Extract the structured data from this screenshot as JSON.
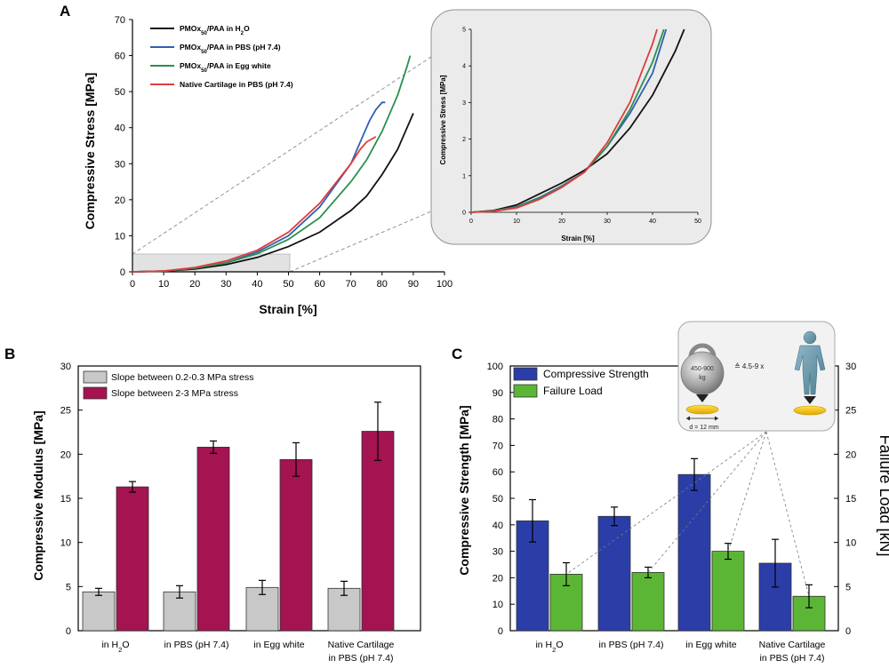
{
  "chart_data": [
    {
      "panel": "A",
      "type": "line",
      "xlabel": "Strain [%]",
      "ylabel": "Compressive Stress [MPa]",
      "xlim": [
        0,
        100
      ],
      "ylim": [
        0,
        70
      ],
      "xticks": [
        0,
        10,
        20,
        30,
        40,
        50,
        60,
        70,
        80,
        90,
        100
      ],
      "yticks": [
        0,
        10,
        20,
        30,
        40,
        50,
        60,
        70
      ],
      "series": [
        {
          "name": "PMOx50/PAA in H2O",
          "label_parts": [
            "PMOx",
            "50",
            "/PAA in H",
            "2",
            "O"
          ],
          "color": "#111111",
          "x": [
            0,
            10,
            20,
            30,
            40,
            50,
            60,
            70,
            75,
            80,
            85,
            88,
            90
          ],
          "y": [
            0,
            0.2,
            0.8,
            2,
            4,
            7,
            11,
            17,
            21,
            27,
            34,
            40,
            44
          ]
        },
        {
          "name": "PMOx50/PAA in PBS (pH 7.4)",
          "label_parts": [
            "PMOx",
            "50",
            "/PAA in PBS (pH 7.4)",
            "",
            ""
          ],
          "color": "#2f5fb0",
          "x": [
            0,
            10,
            20,
            30,
            40,
            50,
            60,
            70,
            74,
            76,
            78,
            80,
            81
          ],
          "y": [
            0,
            0.2,
            1,
            2.5,
            5.5,
            10,
            18,
            30,
            38,
            42,
            45,
            47,
            47
          ]
        },
        {
          "name": "PMOx50/PAA in Egg white",
          "label_parts": [
            "PMOx",
            "50",
            "/PAA in Egg white",
            "",
            ""
          ],
          "color": "#2a9050",
          "x": [
            0,
            10,
            20,
            30,
            40,
            50,
            60,
            70,
            75,
            80,
            85,
            88,
            89
          ],
          "y": [
            0,
            0.2,
            1,
            2.5,
            5,
            9,
            15,
            25,
            31,
            39,
            49,
            57,
            60
          ]
        },
        {
          "name": "Native Cartilage in PBS (pH 7.4)",
          "label_parts": [
            "Native Cartilage in PBS (pH 7.4)",
            "",
            "",
            "",
            ""
          ],
          "color": "#e03c3c",
          "x": [
            0,
            10,
            20,
            30,
            40,
            50,
            60,
            70,
            73,
            75,
            77,
            78
          ],
          "y": [
            0,
            0.2,
            1.2,
            3,
            6,
            11,
            19,
            30,
            34,
            36,
            37,
            37.5
          ]
        }
      ],
      "inset": {
        "xlabel": "Strain [%]",
        "ylabel": "Compressive Stress [MPa]",
        "xlim": [
          0,
          50
        ],
        "ylim": [
          0,
          5
        ],
        "xticks": [
          0,
          10,
          20,
          30,
          40,
          50
        ],
        "yticks": [
          0,
          1,
          2,
          3,
          4,
          5
        ],
        "series": [
          {
            "name": "PMOx50/PAA in H2O",
            "color": "#111111",
            "x": [
              0,
              5,
              10,
              15,
              20,
              25,
              30,
              35,
              40,
              45,
              47
            ],
            "y": [
              0,
              0.05,
              0.2,
              0.5,
              0.8,
              1.15,
              1.6,
              2.3,
              3.2,
              4.4,
              5
            ]
          },
          {
            "name": "PMOx50/PAA in PBS (pH 7.4)",
            "color": "#2f5fb0",
            "x": [
              0,
              5,
              10,
              15,
              20,
              25,
              30,
              35,
              40,
              43
            ],
            "y": [
              0,
              0.04,
              0.15,
              0.4,
              0.72,
              1.1,
              1.8,
              2.7,
              3.8,
              5
            ]
          },
          {
            "name": "PMOx50/PAA in Egg white",
            "color": "#2a9050",
            "x": [
              0,
              5,
              10,
              15,
              20,
              25,
              30,
              35,
              40,
              42.5
            ],
            "y": [
              0,
              0.04,
              0.14,
              0.38,
              0.7,
              1.1,
              1.8,
              2.8,
              4.1,
              5
            ]
          },
          {
            "name": "Native Cartilage in PBS (pH 7.4)",
            "color": "#e03c3c",
            "x": [
              0,
              5,
              10,
              15,
              20,
              25,
              30,
              35,
              40,
              41
            ],
            "y": [
              0,
              0.03,
              0.12,
              0.35,
              0.68,
              1.1,
              1.9,
              3.0,
              4.6,
              5
            ]
          }
        ]
      }
    },
    {
      "panel": "B",
      "type": "bar",
      "ylabel": "Compressive Modulus [MPa]",
      "ylim": [
        0,
        30
      ],
      "yticks": [
        0,
        5,
        10,
        15,
        20,
        25,
        30
      ],
      "categories": [
        {
          "line1_parts": [
            "in H",
            "2",
            "O"
          ],
          "line2": ""
        },
        {
          "line1_parts": [
            "in PBS (pH 7.4)",
            "",
            ""
          ],
          "line2": ""
        },
        {
          "line1_parts": [
            "in Egg white",
            "",
            ""
          ],
          "line2": ""
        },
        {
          "line1_parts": [
            "Native Cartilage",
            "",
            ""
          ],
          "line2": "in PBS (pH 7.4)"
        }
      ],
      "series": [
        {
          "name": "Slope between 0.2-0.3 MPa stress",
          "color": "#c8c8c8",
          "values": [
            4.4,
            4.4,
            4.9,
            4.8
          ],
          "errors": [
            0.4,
            0.7,
            0.8,
            0.8
          ]
        },
        {
          "name": "Slope between 2-3 MPa stress",
          "color": "#a31450",
          "values": [
            16.3,
            20.8,
            19.4,
            22.6
          ],
          "errors": [
            0.6,
            0.7,
            1.9,
            3.3
          ]
        }
      ]
    },
    {
      "panel": "C",
      "type": "bar",
      "ylabel": "Compressive Strength [MPa]",
      "ylabel_right": "Failure Load [kN]",
      "ylim": [
        0,
        100
      ],
      "ylim_right": [
        0,
        30
      ],
      "yticks": [
        0,
        10,
        20,
        30,
        40,
        50,
        60,
        70,
        80,
        90,
        100
      ],
      "yticks_right": [
        0,
        5,
        10,
        15,
        20,
        25,
        30
      ],
      "categories": [
        {
          "line1_parts": [
            "in H",
            "2",
            "O"
          ],
          "line2": ""
        },
        {
          "line1_parts": [
            "in PBS (pH 7.4)",
            "",
            ""
          ],
          "line2": ""
        },
        {
          "line1_parts": [
            "in Egg white",
            "",
            ""
          ],
          "line2": ""
        },
        {
          "line1_parts": [
            "Native Cartilage",
            "",
            ""
          ],
          "line2": "in PBS (pH 7.4)"
        }
      ],
      "series": [
        {
          "name": "Compressive Strength",
          "color": "#2b3ea8",
          "axis": "left",
          "values": [
            41.5,
            43.2,
            59.0,
            25.5
          ],
          "errors": [
            8.0,
            3.5,
            6.0,
            9.0
          ]
        },
        {
          "name": "Failure Load",
          "color": "#5cb636",
          "axis": "right",
          "values": [
            6.4,
            6.6,
            9.0,
            3.9
          ],
          "errors": [
            1.3,
            0.6,
            0.9,
            1.3
          ]
        }
      ],
      "illustration": {
        "weight_label_1": "450-900",
        "weight_label_2": "kg",
        "equals_text": "≙ 4.5-9 x",
        "diameter_label": "d = 12 mm"
      }
    }
  ],
  "panels": {
    "a": "A",
    "b": "B",
    "c": "C"
  }
}
